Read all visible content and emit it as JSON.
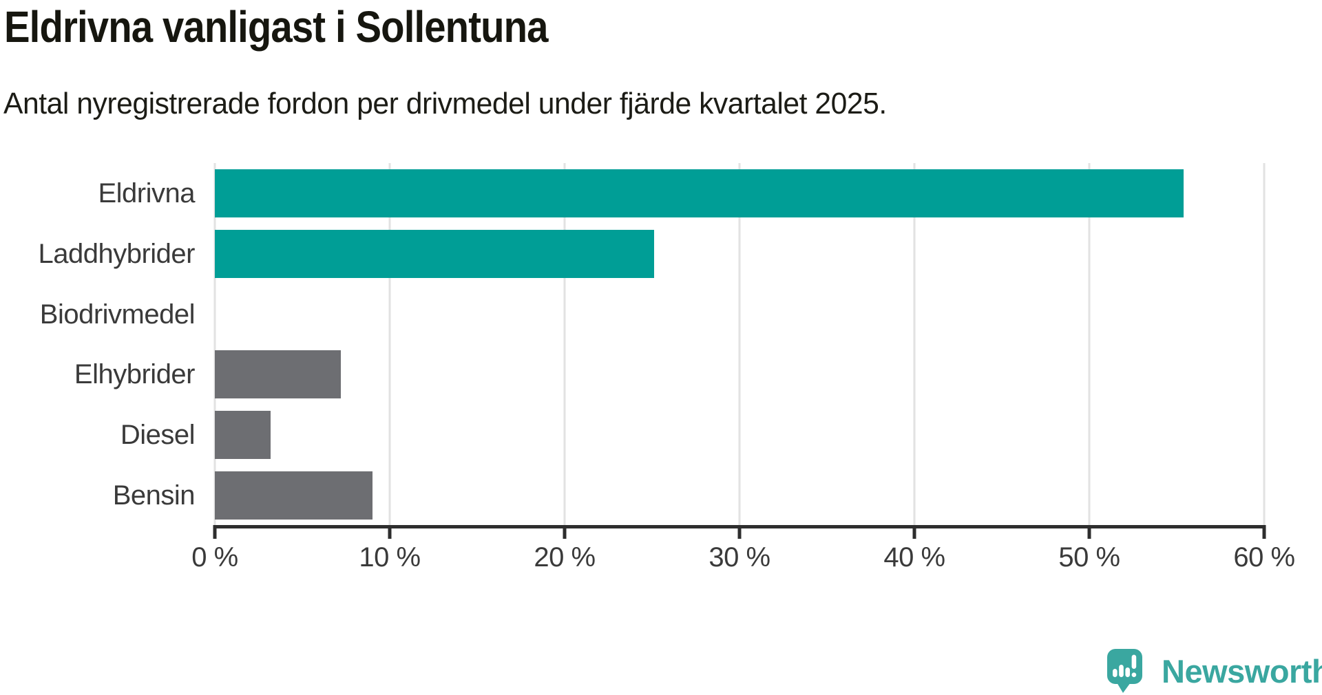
{
  "header": {
    "title": "Eldrivna vanligast i Sollentuna",
    "subtitle": "Antal nyregistrerade fordon per drivmedel under fjärde kvartalet 2025."
  },
  "chart_data": {
    "type": "bar",
    "orientation": "horizontal",
    "title": "Eldrivna vanligast i Sollentuna",
    "subtitle": "Antal nyregistrerade fordon per drivmedel under fjärde kvartalet 2025.",
    "categories": [
      "Eldrivna",
      "Laddhybrider",
      "Biodrivmedel",
      "Elhybrider",
      "Diesel",
      "Bensin"
    ],
    "values": [
      55.4,
      25.1,
      0,
      7.2,
      3.2,
      9.0
    ],
    "unit": "%",
    "xlabel": "",
    "ylabel": "",
    "xlim": [
      0,
      60
    ],
    "xticks": [
      0,
      10,
      20,
      30,
      40,
      50,
      60
    ],
    "xtick_labels": [
      "0 %",
      "10 %",
      "20 %",
      "30 %",
      "40 %",
      "50 %",
      "60 %"
    ],
    "grid": true,
    "legend": "none",
    "bar_color_keys": [
      "accent",
      "accent",
      "none",
      "neutral",
      "neutral",
      "neutral"
    ]
  },
  "colors": {
    "accent": "#009e96",
    "neutral": "#6d6e72",
    "gridline": "#e2e2e2",
    "axis": "#2e2e2e",
    "title_text": "#16160f",
    "label_text": "#3a3a3a",
    "logo_teal": "#3aa7a0",
    "background": "#ffffff"
  },
  "footer": {
    "logo_text": "Newsworthy"
  }
}
